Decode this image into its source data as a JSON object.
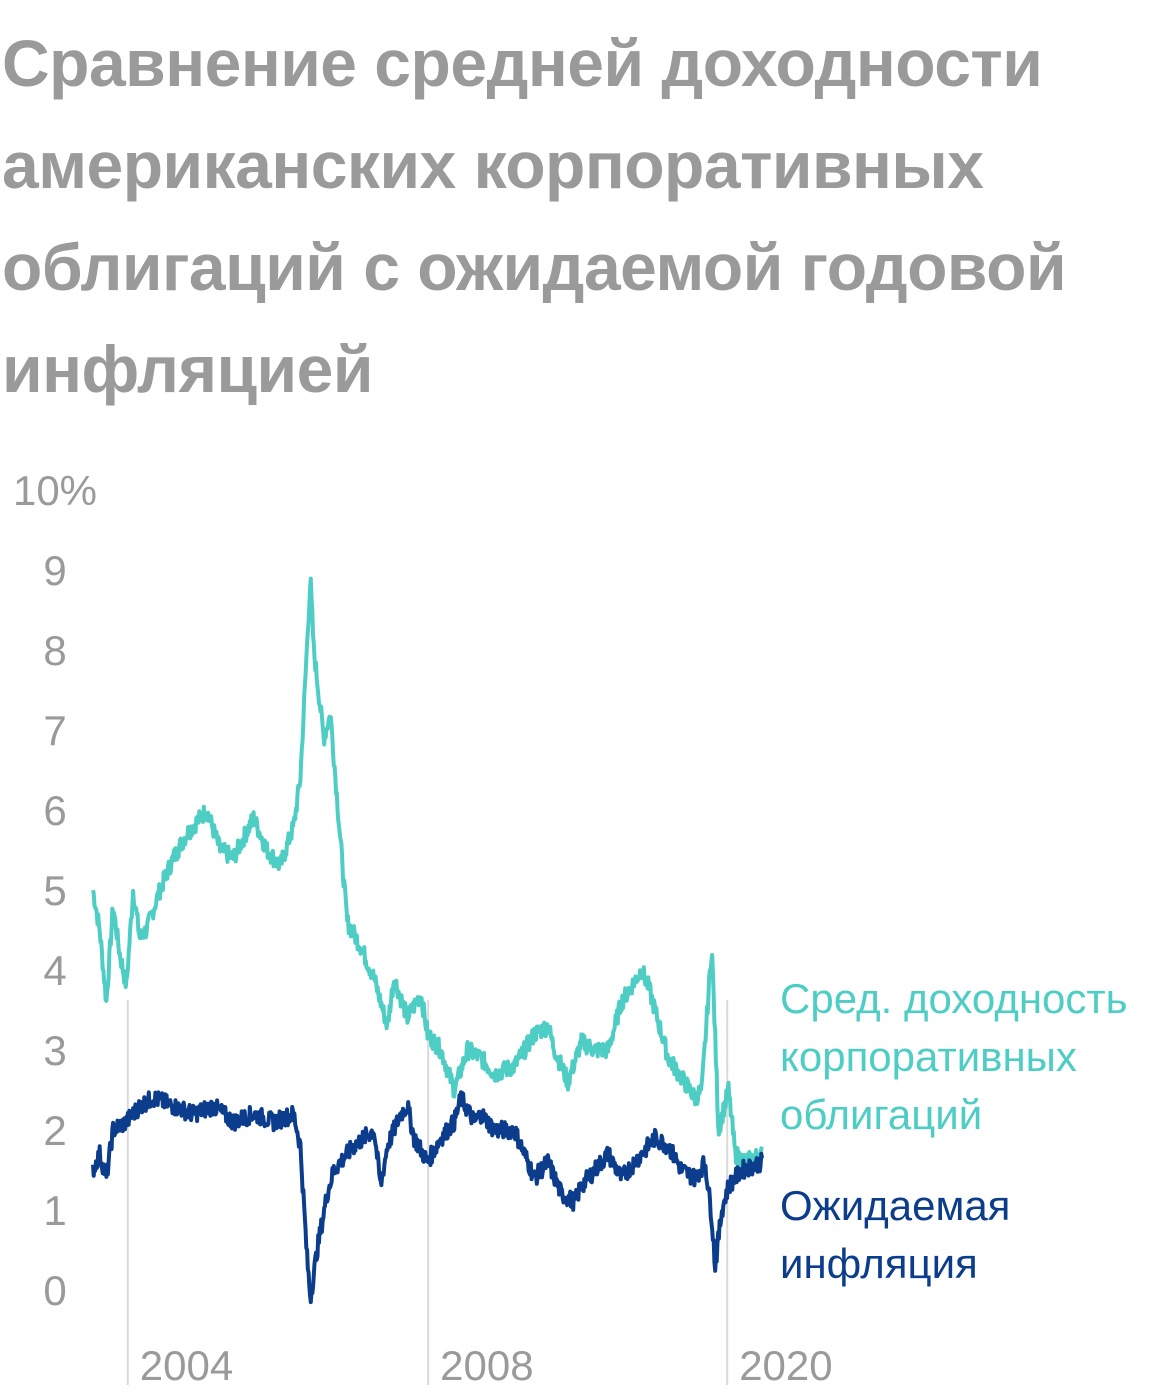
{
  "title": "Сравнение средней доходности американских корпоративных облигаций с ожидаемой годовой инфляцией",
  "chart_data": {
    "type": "line",
    "title": "Сравнение средней доходности американских корпоративных облигаций с ожидаемой годовой инфляцией",
    "y_unit": "%",
    "ylim": [
      0,
      10
    ],
    "y_ticks": [
      "10%",
      "9",
      "8",
      "7",
      "6",
      "5",
      "4",
      "3",
      "2",
      "1",
      "0"
    ],
    "x_ticks": [
      "2004",
      "2008",
      "2020"
    ],
    "grid": false,
    "series": [
      {
        "name": "Сред. доходность корпоративных облигаций",
        "label_lines": [
          "Сред. доходность",
          "корпоративных",
          "облигаций"
        ],
        "color": "#4ecdc4",
        "points": [
          [
            0.0,
            5.0
          ],
          [
            0.01,
            4.5
          ],
          [
            0.02,
            3.6
          ],
          [
            0.03,
            4.8
          ],
          [
            0.04,
            4.2
          ],
          [
            0.05,
            3.8
          ],
          [
            0.06,
            5.0
          ],
          [
            0.07,
            4.4
          ],
          [
            0.08,
            4.5
          ],
          [
            0.1,
            5.0
          ],
          [
            0.12,
            5.4
          ],
          [
            0.14,
            5.7
          ],
          [
            0.17,
            6.0
          ],
          [
            0.19,
            5.5
          ],
          [
            0.21,
            5.4
          ],
          [
            0.24,
            5.9
          ],
          [
            0.26,
            5.5
          ],
          [
            0.28,
            5.3
          ],
          [
            0.3,
            5.8
          ],
          [
            0.31,
            6.4
          ],
          [
            0.325,
            8.9
          ],
          [
            0.33,
            8.0
          ],
          [
            0.345,
            6.9
          ],
          [
            0.355,
            7.2
          ],
          [
            0.37,
            5.6
          ],
          [
            0.38,
            4.6
          ],
          [
            0.4,
            4.3
          ],
          [
            0.42,
            3.9
          ],
          [
            0.44,
            3.3
          ],
          [
            0.45,
            3.9
          ],
          [
            0.47,
            3.4
          ],
          [
            0.49,
            3.7
          ],
          [
            0.5,
            3.2
          ],
          [
            0.52,
            3.0
          ],
          [
            0.54,
            2.5
          ],
          [
            0.56,
            3.0
          ],
          [
            0.58,
            2.9
          ],
          [
            0.6,
            2.7
          ],
          [
            0.63,
            2.8
          ],
          [
            0.66,
            3.2
          ],
          [
            0.68,
            3.3
          ],
          [
            0.69,
            3.0
          ],
          [
            0.71,
            2.6
          ],
          [
            0.73,
            3.1
          ],
          [
            0.75,
            3.0
          ],
          [
            0.77,
            3.0
          ],
          [
            0.79,
            3.6
          ],
          [
            0.82,
            4.0
          ],
          [
            0.83,
            3.8
          ],
          [
            0.86,
            2.9
          ],
          [
            0.9,
            2.4
          ],
          [
            0.91,
            2.5
          ],
          [
            0.925,
            4.3
          ],
          [
            0.935,
            2.0
          ],
          [
            0.95,
            2.5
          ],
          [
            0.96,
            1.7
          ],
          [
            0.975,
            1.6
          ],
          [
            1.0,
            1.7
          ]
        ]
      },
      {
        "name": "Ожидаемая инфляция",
        "label_lines": [
          "Ожидаемая",
          "инфляция"
        ],
        "color": "#0b3d8c",
        "points": [
          [
            0.0,
            1.5
          ],
          [
            0.01,
            1.7
          ],
          [
            0.02,
            1.4
          ],
          [
            0.03,
            2.0
          ],
          [
            0.05,
            2.1
          ],
          [
            0.07,
            2.3
          ],
          [
            0.09,
            2.4
          ],
          [
            0.12,
            2.3
          ],
          [
            0.15,
            2.2
          ],
          [
            0.18,
            2.3
          ],
          [
            0.21,
            2.1
          ],
          [
            0.24,
            2.2
          ],
          [
            0.27,
            2.1
          ],
          [
            0.3,
            2.2
          ],
          [
            0.31,
            1.8
          ],
          [
            0.32,
            0.4
          ],
          [
            0.325,
            -0.1
          ],
          [
            0.335,
            0.5
          ],
          [
            0.35,
            1.2
          ],
          [
            0.36,
            1.5
          ],
          [
            0.39,
            1.8
          ],
          [
            0.42,
            2.0
          ],
          [
            0.43,
            1.3
          ],
          [
            0.44,
            1.8
          ],
          [
            0.46,
            2.2
          ],
          [
            0.47,
            2.3
          ],
          [
            0.48,
            1.9
          ],
          [
            0.5,
            1.6
          ],
          [
            0.52,
            1.9
          ],
          [
            0.54,
            2.1
          ],
          [
            0.55,
            2.4
          ],
          [
            0.57,
            2.1
          ],
          [
            0.58,
            2.2
          ],
          [
            0.6,
            2.0
          ],
          [
            0.63,
            2.0
          ],
          [
            0.65,
            1.6
          ],
          [
            0.66,
            1.4
          ],
          [
            0.68,
            1.6
          ],
          [
            0.7,
            1.2
          ],
          [
            0.72,
            1.1
          ],
          [
            0.73,
            1.3
          ],
          [
            0.75,
            1.5
          ],
          [
            0.77,
            1.7
          ],
          [
            0.79,
            1.4
          ],
          [
            0.81,
            1.6
          ],
          [
            0.84,
            1.9
          ],
          [
            0.86,
            1.8
          ],
          [
            0.88,
            1.5
          ],
          [
            0.9,
            1.4
          ],
          [
            0.915,
            1.6
          ],
          [
            0.925,
            0.9
          ],
          [
            0.93,
            0.3
          ],
          [
            0.94,
            1.0
          ],
          [
            0.95,
            1.3
          ],
          [
            0.97,
            1.5
          ],
          [
            1.0,
            1.6
          ]
        ]
      }
    ]
  }
}
